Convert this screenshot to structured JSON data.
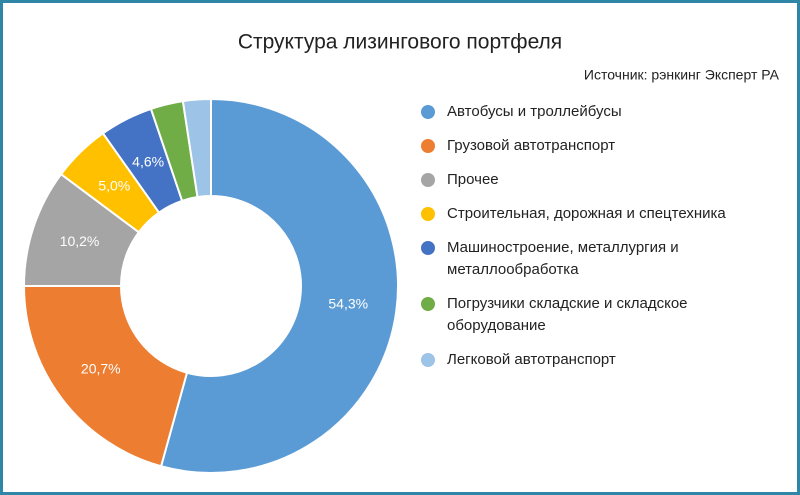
{
  "chart_data": {
    "type": "pie",
    "title": "Структура лизингового портфеля",
    "subtitle": "Источник: рэнкинг Эксперт РА",
    "categories": [
      "Автобусы и троллейбусы",
      "Грузовой автотранспорт",
      "Прочее",
      "Строительная, дорожная и спецтехника",
      "Машиностроение, металлургия и металлообработка",
      "Погрузчики складские и складское оборудование",
      "Легковой автотранспорт"
    ],
    "values": [
      54.3,
      20.7,
      10.2,
      5.0,
      4.6,
      2.8,
      2.4
    ],
    "value_labels": [
      "54,3%",
      "20,7%",
      "10,2%",
      "5,0%",
      "4,6%",
      null,
      null
    ],
    "colors": [
      "#5b9bd5",
      "#ed7d31",
      "#a5a5a5",
      "#ffc000",
      "#4472c4",
      "#70ad47",
      "#9dc3e6"
    ],
    "donut": true,
    "legend": "right"
  }
}
